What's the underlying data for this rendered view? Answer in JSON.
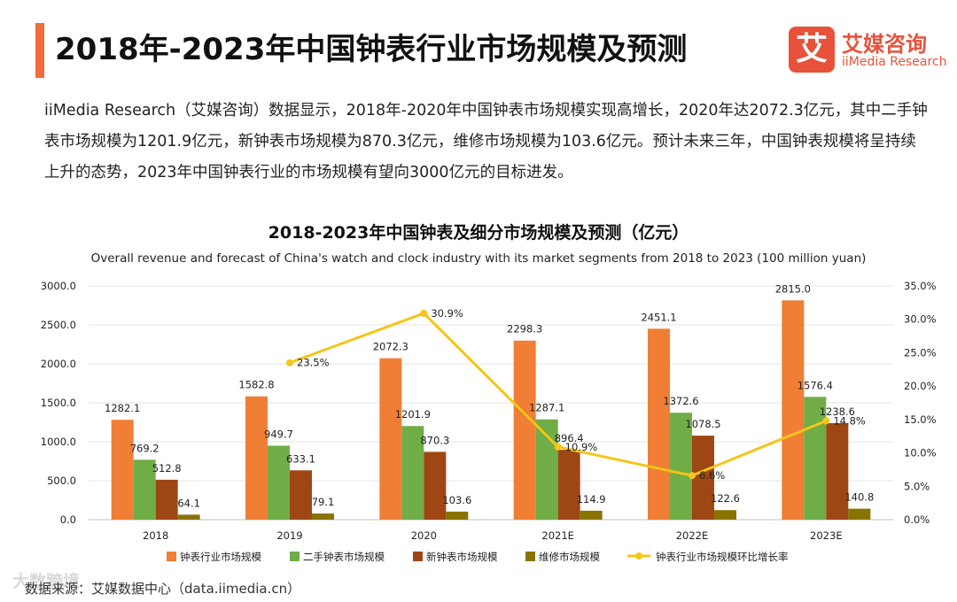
{
  "page": {
    "title": "2018年-2023年中国钟表行业市场规模及预测",
    "accent_color": "#f26b3a",
    "intro": "iiMedia Research（艾媒咨询）数据显示，2018年-2020年中国钟表市场规模实现高增长，2020年达2072.3亿元，其中二手钟表市场规模为1201.9亿元，新钟表市场规模为870.3亿元，维修市场规模为103.6亿元。预计未来三年，中国钟表规模将呈持续上升的态势，2023年中国钟表行业的市场规模有望向3000亿元的目标进发。",
    "source": "数据来源：艾媒数据中心（data.iimedia.cn）",
    "watermark": "大数跨境"
  },
  "logo": {
    "glyph": "艾",
    "name_cn": "艾媒咨询",
    "name_en": "iiMedia Research",
    "color": "#e8523a"
  },
  "chart_data": {
    "type": "bar",
    "title": "2018-2023年中国钟表及细分市场规模及预测（亿元）",
    "subtitle": "Overall revenue and forecast of China's watch and clock industry with its market segments from 2018 to 2023 (100 million yuan)",
    "categories": [
      "2018",
      "2019",
      "2020",
      "2021E",
      "2022E",
      "2023E"
    ],
    "ylim": [
      0,
      3000
    ],
    "yticks": [
      0,
      500,
      1000,
      1500,
      2000,
      2500,
      3000
    ],
    "ytick_labels": [
      "0.0",
      "500.0",
      "1000.0",
      "1500.0",
      "2000.0",
      "2500.0",
      "3000.0"
    ],
    "y2lim": [
      0,
      35
    ],
    "y2ticks": [
      0,
      5,
      10,
      15,
      20,
      25,
      30,
      35
    ],
    "y2tick_labels": [
      "0.0%",
      "5.0%",
      "10.0%",
      "15.0%",
      "20.0%",
      "25.0%",
      "30.0%",
      "35.0%"
    ],
    "grid": true,
    "legend_position": "bottom",
    "series": [
      {
        "name": "钟表行业市场规模",
        "color": "#f07e34",
        "values": [
          1282.1,
          1582.8,
          2072.3,
          2298.3,
          2451.1,
          2815.0
        ],
        "labels": [
          "1282.1",
          "1582.8",
          "2072.3",
          "2298.3",
          "2451.1",
          "2815.0"
        ]
      },
      {
        "name": "二手钟表市场规模",
        "color": "#70ad47",
        "values": [
          769.2,
          949.7,
          1201.9,
          1287.1,
          1372.6,
          1576.4
        ],
        "labels": [
          "769.2",
          "949.7",
          "1201.9",
          "1287.1",
          "1372.6",
          "1576.4"
        ]
      },
      {
        "name": "新钟表市场规模",
        "color": "#9e4715",
        "values": [
          512.8,
          633.1,
          870.3,
          896.4,
          1078.5,
          1238.6
        ],
        "labels": [
          "512.8",
          "633.1",
          "870.3",
          "896.4",
          "1078.5",
          "1238.6"
        ]
      },
      {
        "name": "维修市场规模",
        "color": "#8a7400",
        "values": [
          64.1,
          79.1,
          103.6,
          114.9,
          122.6,
          140.8
        ],
        "labels": [
          "64.1",
          "79.1",
          "103.6",
          "114.9",
          "122.6",
          "140.8"
        ]
      }
    ],
    "line_series": {
      "name": "钟表行业市场规模环比增长率",
      "color": "#f5c518",
      "axis": "right",
      "categories": [
        "2019",
        "2020",
        "2021E",
        "2022E",
        "2023E"
      ],
      "values": [
        23.5,
        30.9,
        10.9,
        6.6,
        14.8
      ],
      "labels": [
        "23.5%",
        "30.9%",
        "10.9%",
        "6.6%",
        "14.8%"
      ]
    }
  }
}
